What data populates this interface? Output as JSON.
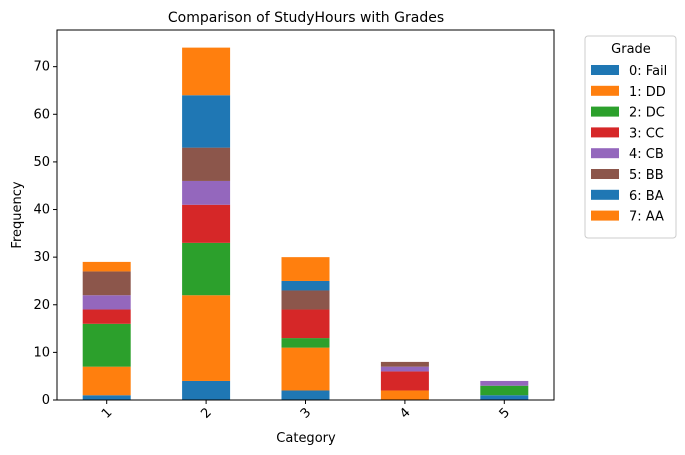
{
  "chart_data": {
    "type": "bar",
    "stacked": true,
    "title": "Comparison of StudyHours with Grades",
    "xlabel": "Category",
    "ylabel": "Frequency",
    "categories": [
      "1",
      "2",
      "3",
      "4",
      "5"
    ],
    "ylim": [
      0,
      77.7
    ],
    "yticks": [
      0,
      10,
      20,
      30,
      40,
      50,
      60,
      70
    ],
    "grid": false,
    "legend": {
      "title": "Grade",
      "placement": "outside-top-right"
    },
    "series": [
      {
        "name": "0: Fail",
        "color": "#1f77b4",
        "values": [
          1,
          4,
          2,
          0,
          1
        ]
      },
      {
        "name": "1: DD",
        "color": "#ff7f0e",
        "values": [
          6,
          18,
          9,
          2,
          0
        ]
      },
      {
        "name": "2: DC",
        "color": "#2ca02c",
        "values": [
          9,
          11,
          2,
          0,
          2
        ]
      },
      {
        "name": "3: CC",
        "color": "#d62728",
        "values": [
          3,
          8,
          6,
          4,
          0
        ]
      },
      {
        "name": "4: CB",
        "color": "#9467bd",
        "values": [
          3,
          5,
          0,
          1,
          1
        ]
      },
      {
        "name": "5: BB",
        "color": "#8c564b",
        "values": [
          5,
          7,
          4,
          1,
          0
        ]
      },
      {
        "name": "6: BA",
        "color": "#1f77b4",
        "values": [
          0,
          11,
          2,
          0,
          0
        ]
      },
      {
        "name": "7: AA",
        "color": "#ff7f0e",
        "values": [
          2,
          10,
          5,
          0,
          0
        ]
      }
    ]
  }
}
